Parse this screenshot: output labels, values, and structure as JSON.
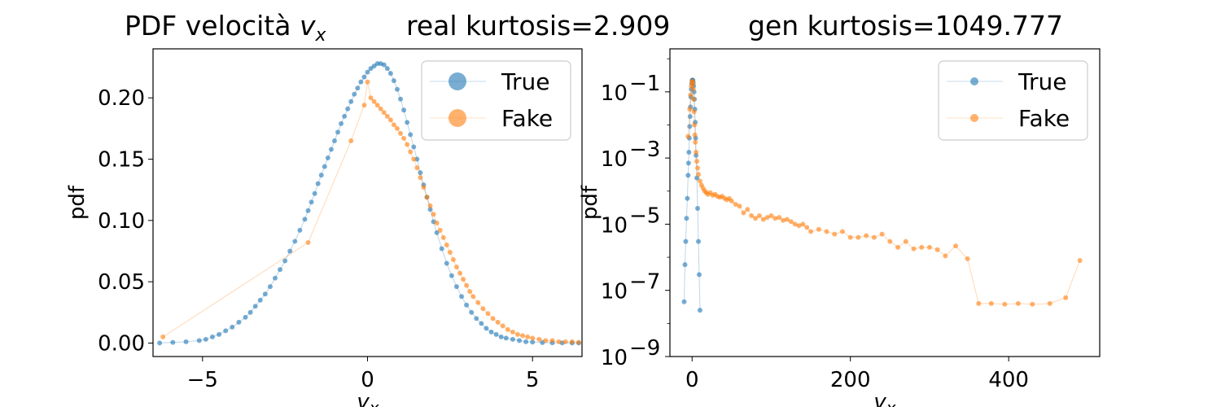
{
  "figure": {
    "title": "PDF velocità v_x",
    "title_main": "PDF velocità ",
    "title_var": "v",
    "title_sub": "x",
    "kurtosis_real": "real kurtosis=2.909",
    "kurtosis_gen": "gen kurtosis=1049.777"
  },
  "colors": {
    "true": "#1f77b4",
    "fake": "#ff7f0e"
  },
  "chart_data": [
    {
      "type": "line",
      "scale": "linear",
      "xlabel": "v_x",
      "xlabel_var": "v",
      "xlabel_sub": "x",
      "ylabel": "pdf",
      "xlim": [
        -6.5,
        6.5
      ],
      "ylim": [
        -0.011,
        0.24
      ],
      "xticks": [
        -5,
        0,
        5
      ],
      "xtick_labels": [
        "−5",
        "0",
        "5"
      ],
      "yticks": [
        0.0,
        0.05,
        0.1,
        0.15,
        0.2
      ],
      "ytick_labels": [
        "0.00",
        "0.05",
        "0.10",
        "0.15",
        "0.20"
      ],
      "legend": {
        "placement": "upper right",
        "entries": [
          "True",
          "Fake"
        ]
      },
      "grid": false,
      "series": [
        {
          "name": "True",
          "color": "#1f77b4",
          "x": [
            -6.3,
            -5.9,
            -5.5,
            -5.1,
            -4.9,
            -4.7,
            -4.5,
            -4.3,
            -4.1,
            -3.9,
            -3.7,
            -3.55,
            -3.4,
            -3.25,
            -3.1,
            -2.95,
            -2.8,
            -2.65,
            -2.5,
            -2.35,
            -2.2,
            -2.05,
            -1.9,
            -1.8,
            -1.7,
            -1.6,
            -1.5,
            -1.4,
            -1.3,
            -1.2,
            -1.1,
            -1.0,
            -0.9,
            -0.8,
            -0.7,
            -0.6,
            -0.5,
            -0.4,
            -0.3,
            -0.2,
            -0.1,
            0.0,
            0.1,
            0.2,
            0.3,
            0.4,
            0.5,
            0.6,
            0.7,
            0.8,
            0.9,
            1.0,
            1.1,
            1.2,
            1.3,
            1.4,
            1.5,
            1.6,
            1.7,
            1.8,
            1.9,
            2.0,
            2.1,
            2.25,
            2.4,
            2.55,
            2.7,
            2.85,
            3.0,
            3.15,
            3.3,
            3.45,
            3.6,
            3.75,
            3.9,
            4.05,
            4.2,
            4.4,
            4.6,
            4.8,
            5.0,
            5.3,
            5.6,
            5.9,
            6.2,
            6.4
          ],
          "y": [
            0.0,
            0.0005,
            0.001,
            0.002,
            0.003,
            0.005,
            0.007,
            0.01,
            0.013,
            0.017,
            0.021,
            0.025,
            0.03,
            0.035,
            0.04,
            0.046,
            0.053,
            0.06,
            0.067,
            0.075,
            0.083,
            0.092,
            0.101,
            0.108,
            0.115,
            0.122,
            0.13,
            0.137,
            0.144,
            0.151,
            0.158,
            0.165,
            0.172,
            0.179,
            0.185,
            0.191,
            0.197,
            0.203,
            0.208,
            0.213,
            0.217,
            0.221,
            0.224,
            0.226,
            0.228,
            0.228,
            0.227,
            0.224,
            0.22,
            0.214,
            0.207,
            0.199,
            0.19,
            0.18,
            0.17,
            0.16,
            0.15,
            0.139,
            0.129,
            0.119,
            0.109,
            0.099,
            0.09,
            0.077,
            0.065,
            0.055,
            0.046,
            0.038,
            0.031,
            0.025,
            0.02,
            0.016,
            0.012,
            0.009,
            0.007,
            0.005,
            0.004,
            0.003,
            0.002,
            0.001,
            0.0008,
            0.0004,
            0.0002,
            0.0001,
            0.0,
            0.0
          ]
        },
        {
          "name": "Fake",
          "color": "#ff7f0e",
          "x": [
            -6.2,
            -1.8,
            -0.5,
            -0.1,
            0.0,
            0.1,
            0.2,
            0.3,
            0.4,
            0.5,
            0.6,
            0.7,
            0.8,
            0.9,
            1.0,
            1.1,
            1.2,
            1.3,
            1.4,
            1.5,
            1.6,
            1.7,
            1.8,
            1.9,
            2.0,
            2.1,
            2.2,
            2.3,
            2.4,
            2.5,
            2.6,
            2.7,
            2.8,
            2.9,
            3.0,
            3.1,
            3.2,
            3.35,
            3.5,
            3.65,
            3.8,
            3.95,
            4.1,
            4.25,
            4.4,
            4.55,
            4.7,
            4.85,
            5.0,
            5.2,
            5.4,
            5.6,
            5.8,
            6.0,
            6.2,
            6.4
          ],
          "y": [
            0.005,
            0.082,
            0.165,
            0.194,
            0.213,
            0.2,
            0.197,
            0.194,
            0.191,
            0.188,
            0.185,
            0.182,
            0.178,
            0.175,
            0.171,
            0.167,
            0.162,
            0.156,
            0.15,
            0.143,
            0.135,
            0.127,
            0.119,
            0.112,
            0.105,
            0.098,
            0.092,
            0.086,
            0.08,
            0.074,
            0.068,
            0.062,
            0.057,
            0.052,
            0.047,
            0.042,
            0.038,
            0.033,
            0.028,
            0.024,
            0.02,
            0.017,
            0.014,
            0.011,
            0.009,
            0.007,
            0.006,
            0.005,
            0.004,
            0.003,
            0.002,
            0.002,
            0.001,
            0.001,
            0.001,
            0.0005
          ]
        }
      ]
    },
    {
      "type": "line",
      "scale": "log",
      "xlabel": "v_x",
      "xlabel_var": "v",
      "xlabel_sub": "x",
      "ylabel": "pdf",
      "xlim": [
        -28,
        515
      ],
      "ylim_log10": [
        -9,
        0.3
      ],
      "xticks": [
        0,
        200,
        400
      ],
      "xtick_labels": [
        "0",
        "200",
        "400"
      ],
      "yticks_log10": [
        -1,
        -3,
        -5,
        -7,
        -9
      ],
      "ytick_labels": [
        {
          "base": "10",
          "exp": "−1"
        },
        {
          "base": "10",
          "exp": "−3"
        },
        {
          "base": "10",
          "exp": "−5"
        },
        {
          "base": "10",
          "exp": "−7"
        },
        {
          "base": "10",
          "exp": "−9"
        }
      ],
      "legend": {
        "placement": "upper right",
        "entries": [
          "True",
          "Fake"
        ]
      },
      "grid": false,
      "series": [
        {
          "name": "True",
          "color": "#1f77b4",
          "x": [
            -10,
            -9,
            -8,
            -7,
            -6,
            -5,
            -4.5,
            -4,
            -3.5,
            -3,
            -2.5,
            -2,
            -1.5,
            -1,
            -0.5,
            0,
            0.5,
            1,
            1.5,
            2,
            2.5,
            3,
            3.5,
            4,
            4.5,
            5,
            6,
            7,
            8,
            9,
            10
          ],
          "y": [
            4.5e-08,
            6e-07,
            3e-06,
            1.5e-05,
            6e-05,
            0.0003,
            0.0007,
            0.0015,
            0.004,
            0.009,
            0.018,
            0.035,
            0.07,
            0.12,
            0.18,
            0.22,
            0.228,
            0.22,
            0.19,
            0.15,
            0.1,
            0.06,
            0.03,
            0.012,
            0.004,
            0.0012,
            0.00025,
            3e-05,
            3e-06,
            3e-07,
            2.5e-08
          ]
        },
        {
          "name": "Fake",
          "color": "#ff7f0e",
          "x": [
            -5,
            -3,
            -2,
            -1,
            0,
            0.5,
            1,
            1.5,
            2,
            2.5,
            3,
            3.5,
            4,
            5,
            6,
            7,
            8,
            10,
            12,
            14,
            16,
            18,
            20,
            23,
            26,
            29,
            32,
            35,
            38,
            41,
            44,
            47,
            50,
            55,
            60,
            65,
            70,
            75,
            80,
            85,
            90,
            95,
            100,
            105,
            110,
            115,
            120,
            125,
            130,
            135,
            140,
            145,
            150,
            160,
            170,
            180,
            190,
            200,
            210,
            220,
            230,
            240,
            250,
            260,
            270,
            280,
            290,
            300,
            310,
            320,
            333,
            348,
            362,
            378,
            395,
            412,
            430,
            452,
            472,
            490
          ],
          "y": [
            0.0045,
            0.03,
            0.08,
            0.15,
            0.21,
            0.2,
            0.17,
            0.12,
            0.06,
            0.025,
            0.01,
            0.005,
            0.003,
            0.0015,
            0.0008,
            0.0005,
            0.00032,
            0.0002,
            0.00015,
            0.00012,
            0.0001,
            9e-05,
            8e-05,
            9e-05,
            7.5e-05,
            8e-05,
            7e-05,
            6.5e-05,
            7e-05,
            6e-05,
            5.5e-05,
            6e-05,
            5e-05,
            4e-05,
            3.5e-05,
            2.2e-05,
            2.8e-05,
            1.8e-05,
            1.5e-05,
            1.8e-05,
            1.4e-05,
            1.6e-05,
            1.8e-05,
            1.5e-05,
            1.6e-05,
            1.3e-05,
            1.4e-05,
            1.2e-05,
            1e-05,
            9e-06,
            1e-05,
            8e-06,
            6e-06,
            7e-06,
            6e-06,
            5e-06,
            6e-06,
            4e-06,
            4e-06,
            4.5e-06,
            4e-06,
            5e-06,
            3e-06,
            2e-06,
            3e-06,
            1.8e-06,
            2e-06,
            2e-06,
            1.7e-06,
            1.1e-06,
            2.2e-06,
            9e-07,
            4e-08,
            4e-08,
            3.8e-08,
            4e-08,
            3.8e-08,
            4e-08,
            6e-08,
            8e-07
          ]
        }
      ]
    }
  ]
}
